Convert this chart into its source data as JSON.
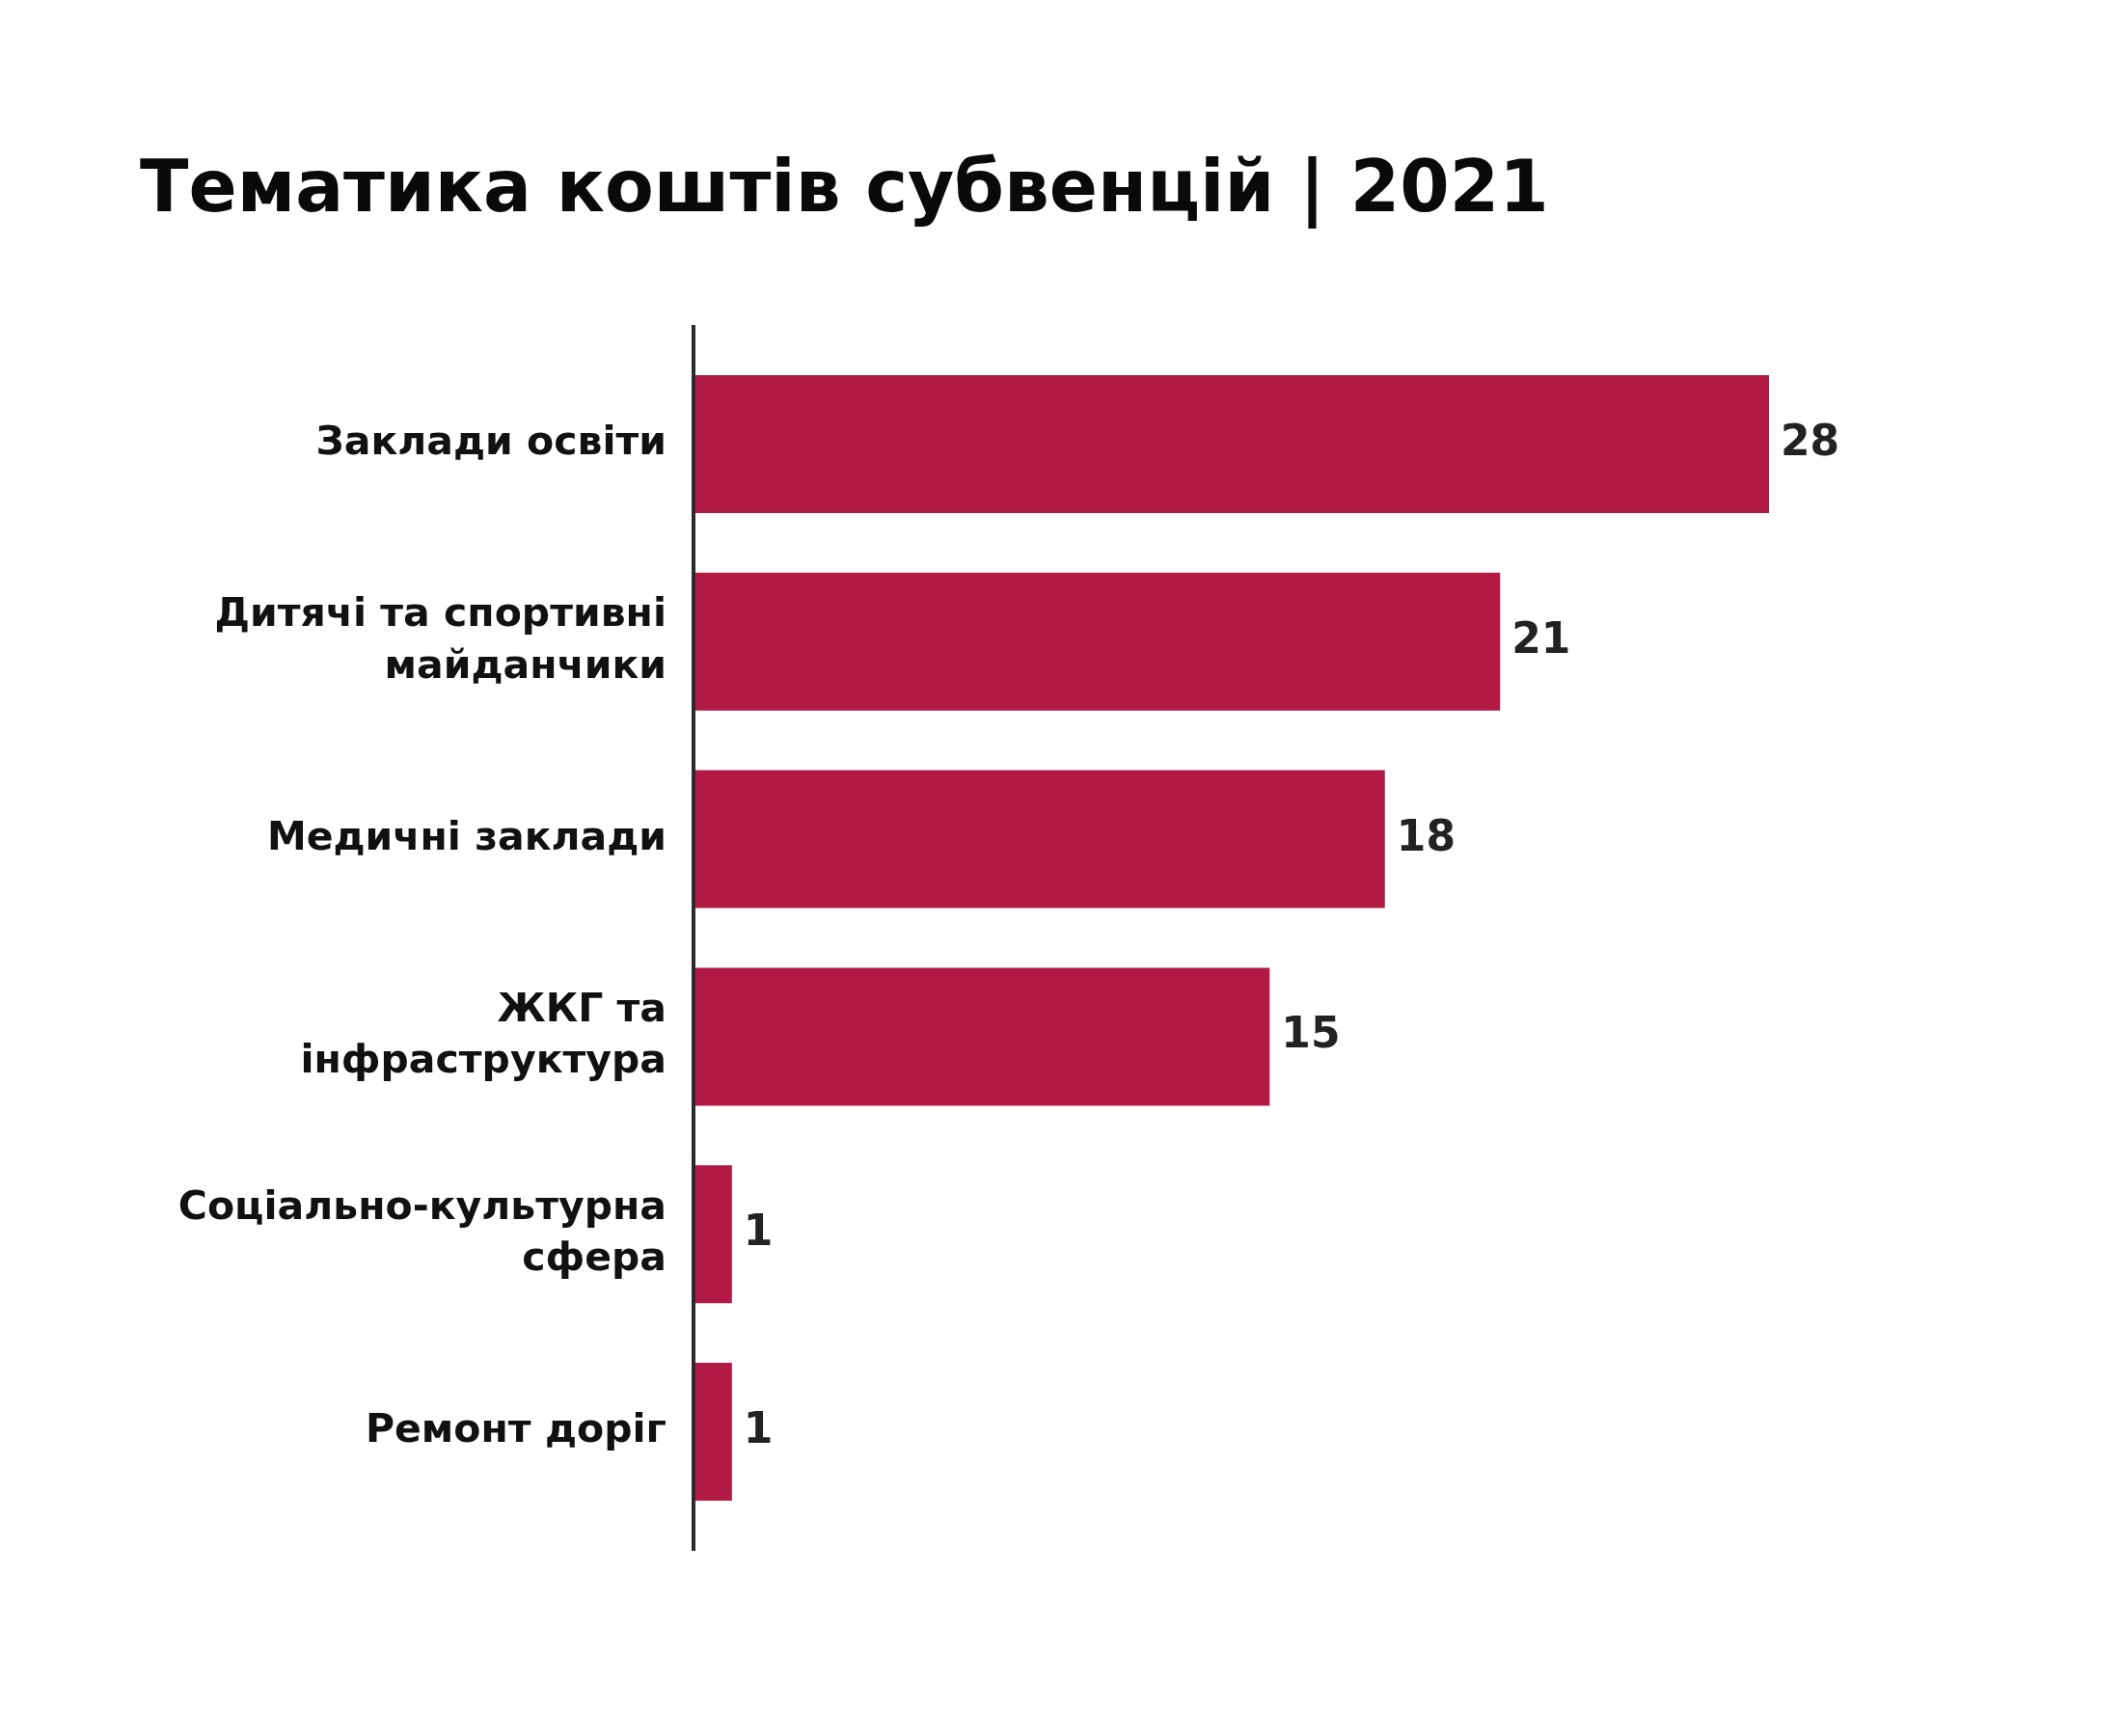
{
  "chart_data": {
    "type": "bar",
    "orientation": "horizontal",
    "title": "Тематика коштів субвенцій | 2021",
    "categories": [
      "Заклади освіти",
      "Дитячі та спортивні майданчики",
      "Медичні заклади",
      "ЖКГ та інфраструктура",
      "Соціально-культурна сфера",
      "Ремонт доріг"
    ],
    "values": [
      28,
      21,
      18,
      15,
      1,
      1
    ],
    "color": "#b01a44",
    "data_labels": true,
    "tick_labels": "y"
  }
}
